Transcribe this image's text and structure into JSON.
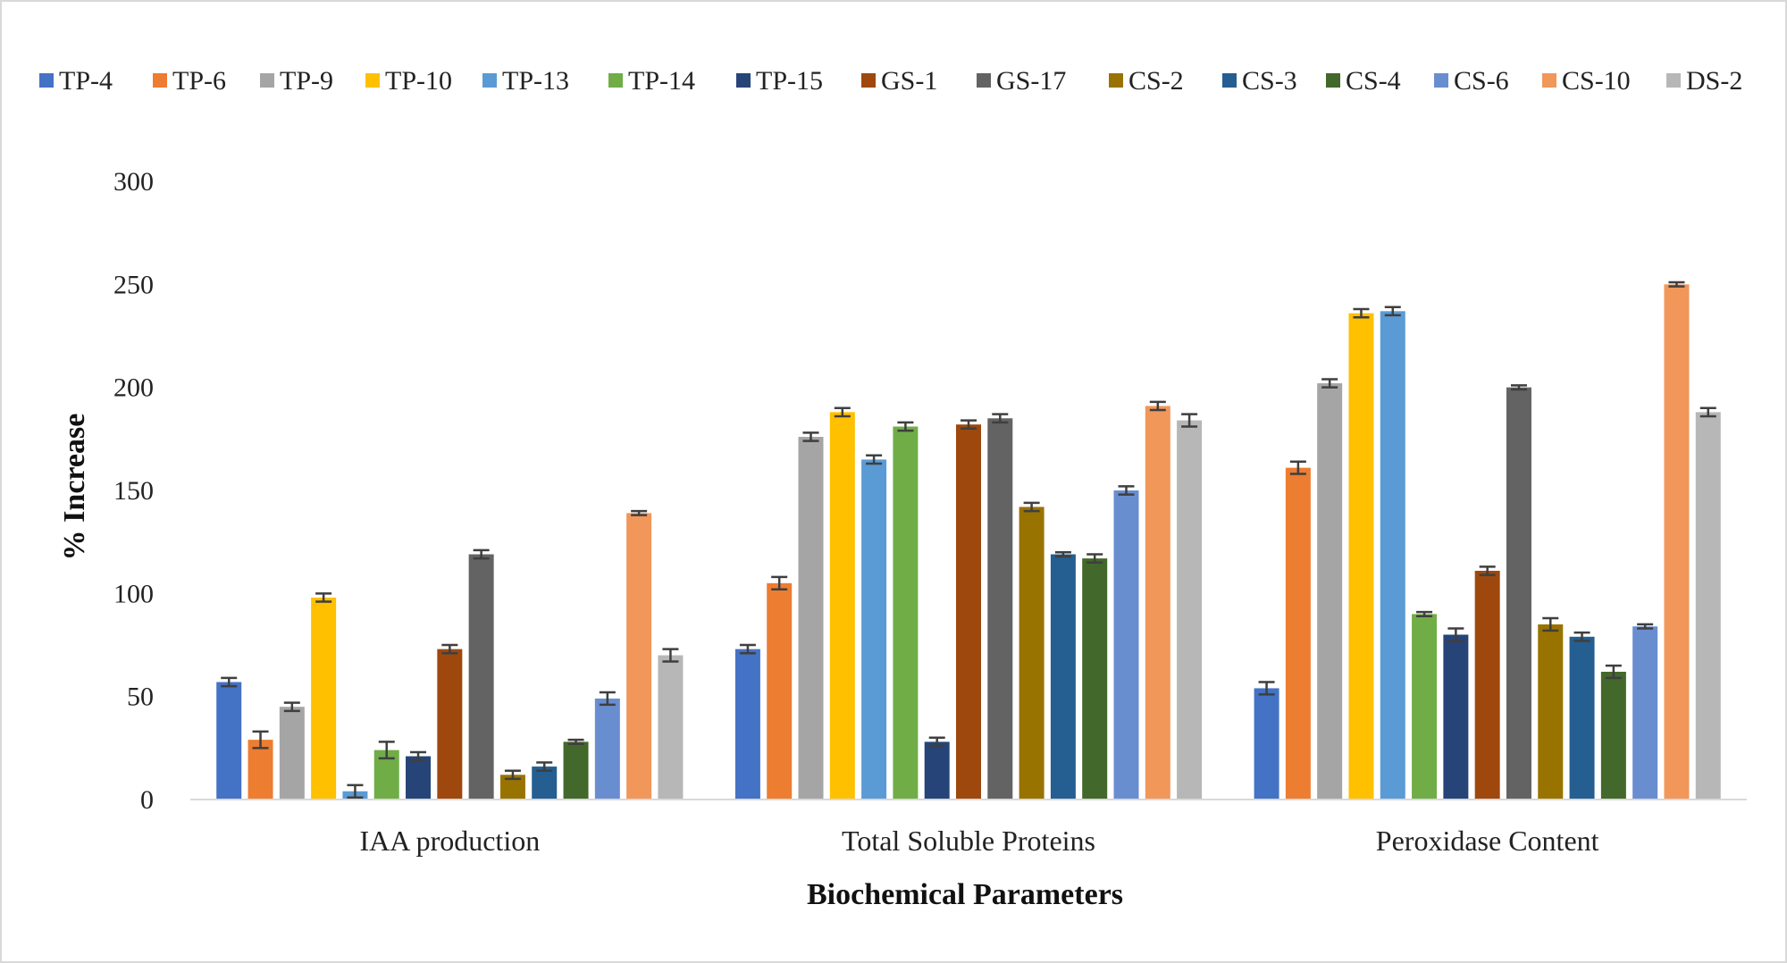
{
  "chart_data": {
    "type": "bar",
    "title": "",
    "xlabel": "Biochemical Parameters",
    "ylabel": "% Increase",
    "ylim": [
      0,
      300
    ],
    "yticks": [
      0,
      50,
      100,
      150,
      200,
      250,
      300
    ],
    "grid": false,
    "legend_position": "top",
    "error_bars": true,
    "categories": [
      "IAA production",
      "Total Soluble Proteins",
      "Peroxidase Content"
    ],
    "series": [
      {
        "name": "TP-4",
        "color": "#4472C4",
        "values": [
          57,
          73,
          54
        ],
        "errors": [
          2,
          2,
          3
        ]
      },
      {
        "name": "TP-6",
        "color": "#ED7D31",
        "values": [
          29,
          105,
          161
        ],
        "errors": [
          4,
          3,
          3
        ]
      },
      {
        "name": "TP-9",
        "color": "#A5A5A5",
        "values": [
          45,
          176,
          202
        ],
        "errors": [
          2,
          2,
          2
        ]
      },
      {
        "name": "TP-10",
        "color": "#FFC000",
        "values": [
          98,
          188,
          236
        ],
        "errors": [
          2,
          2,
          2
        ]
      },
      {
        "name": "TP-13",
        "color": "#5B9BD5",
        "values": [
          4,
          165,
          237
        ],
        "errors": [
          3,
          2,
          2
        ]
      },
      {
        "name": "TP-14",
        "color": "#70AD47",
        "values": [
          24,
          181,
          90
        ],
        "errors": [
          4,
          2,
          1
        ]
      },
      {
        "name": "TP-15",
        "color": "#264478",
        "values": [
          21,
          28,
          80
        ],
        "errors": [
          2,
          2,
          3
        ]
      },
      {
        "name": "GS-1",
        "color": "#9E480E",
        "values": [
          73,
          182,
          111
        ],
        "errors": [
          2,
          2,
          2
        ]
      },
      {
        "name": "GS-17",
        "color": "#636363",
        "values": [
          119,
          185,
          200
        ],
        "errors": [
          2,
          2,
          1
        ]
      },
      {
        "name": "CS-2",
        "color": "#997300",
        "values": [
          12,
          142,
          85
        ],
        "errors": [
          2,
          2,
          3
        ]
      },
      {
        "name": "CS-3",
        "color": "#255E91",
        "values": [
          16,
          119,
          79
        ],
        "errors": [
          2,
          1,
          2
        ]
      },
      {
        "name": "CS-4",
        "color": "#43682B",
        "values": [
          28,
          117,
          62
        ],
        "errors": [
          1,
          2,
          3
        ]
      },
      {
        "name": "CS-6",
        "color": "#698ED0",
        "values": [
          49,
          150,
          84
        ],
        "errors": [
          3,
          2,
          1
        ]
      },
      {
        "name": "CS-10",
        "color": "#F1975A",
        "values": [
          139,
          191,
          250
        ],
        "errors": [
          1,
          2,
          1
        ]
      },
      {
        "name": "DS-2",
        "color": "#B7B7B7",
        "values": [
          70,
          184,
          188
        ],
        "errors": [
          3,
          3,
          2
        ]
      }
    ]
  }
}
